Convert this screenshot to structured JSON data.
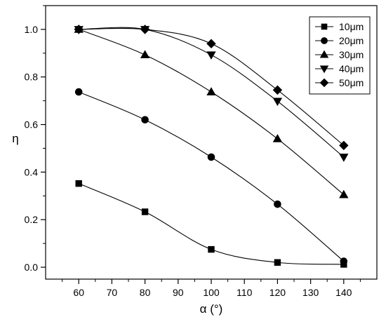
{
  "chart_data": {
    "type": "line",
    "xlabel": "α (°)",
    "ylabel": "η",
    "xlim": [
      50,
      150
    ],
    "ylim": [
      -0.05,
      1.1
    ],
    "x_ticks": [
      "60",
      "70",
      "80",
      "90",
      "100",
      "110",
      "120",
      "130",
      "140"
    ],
    "y_ticks": [
      "0.0",
      "0.2",
      "0.4",
      "0.6",
      "0.8",
      "1.0"
    ],
    "grid": false,
    "legend_position": "top-right",
    "x": [
      60,
      80,
      100,
      120,
      140
    ],
    "series": [
      {
        "name": "10μm",
        "marker": "square",
        "values": [
          0.352,
          0.233,
          0.075,
          0.02,
          0.012
        ]
      },
      {
        "name": "20μm",
        "marker": "circle",
        "values": [
          0.737,
          0.62,
          0.463,
          0.265,
          0.025
        ]
      },
      {
        "name": "30μm",
        "marker": "triangle-up",
        "values": [
          1.0,
          0.893,
          0.737,
          0.54,
          0.305
        ]
      },
      {
        "name": "40μm",
        "marker": "triangle-down",
        "values": [
          1.0,
          1.0,
          0.893,
          0.698,
          0.463
        ]
      },
      {
        "name": "50μm",
        "marker": "diamond",
        "values": [
          1.0,
          1.0,
          0.94,
          0.745,
          0.512
        ]
      }
    ],
    "line_color": "#000000"
  }
}
